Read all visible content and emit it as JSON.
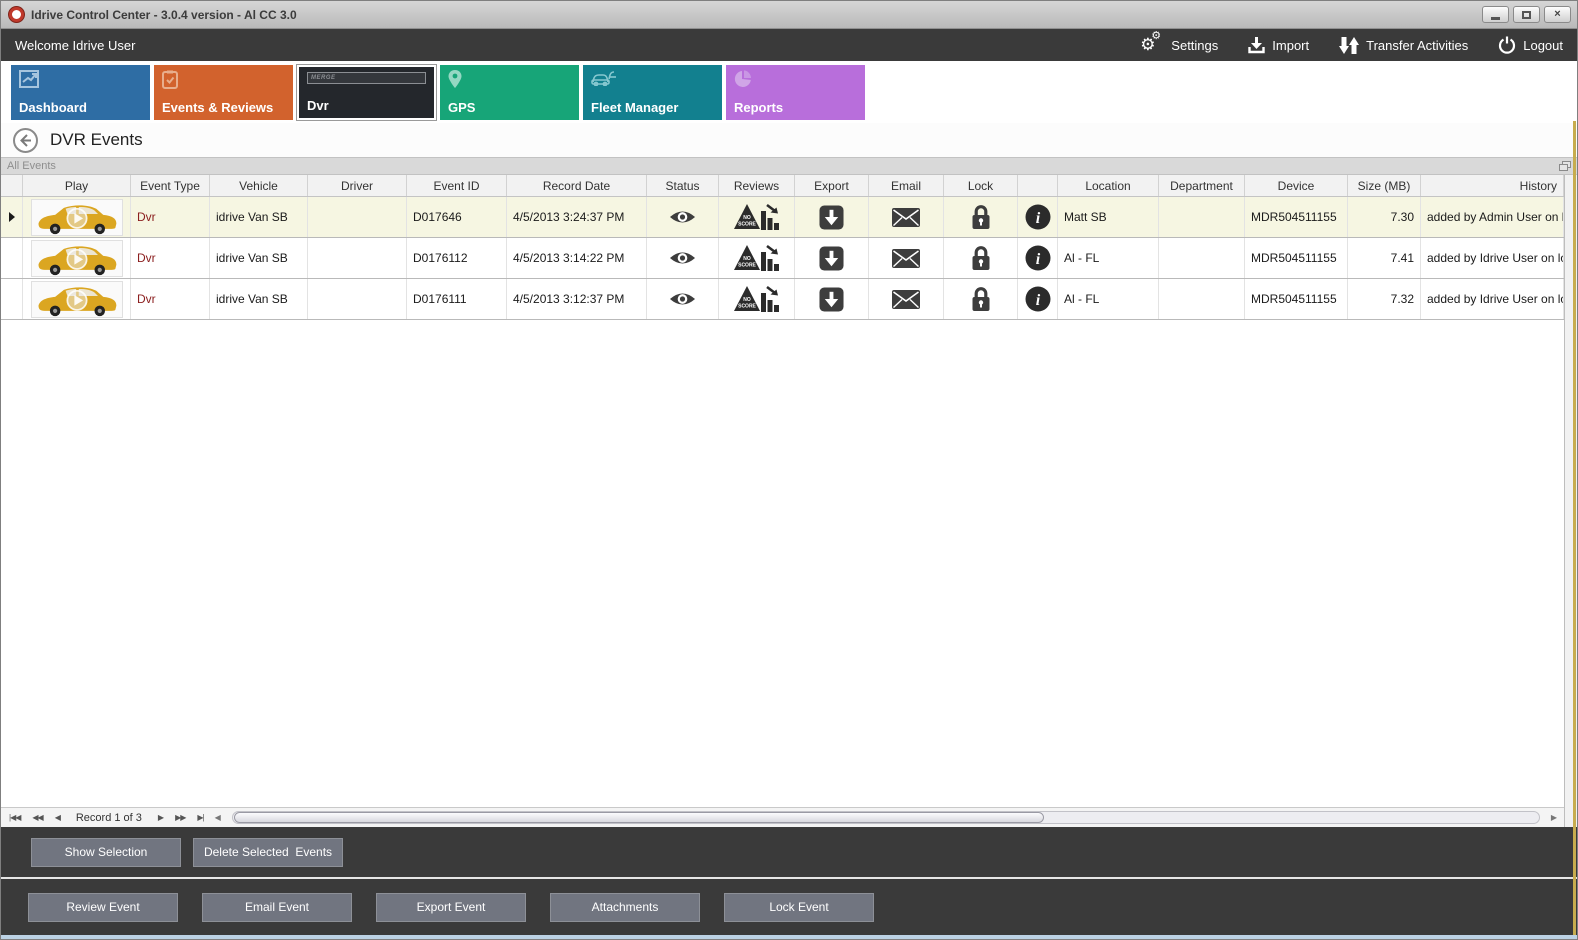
{
  "window": {
    "title": "Idrive Control Center - 3.0.4 version - Al CC 3.0"
  },
  "topbar": {
    "welcome": "Welcome Idrive User",
    "actions": [
      {
        "label": "Settings"
      },
      {
        "label": "Import"
      },
      {
        "label": "Transfer Activities"
      },
      {
        "label": "Logout"
      }
    ]
  },
  "tiles": [
    {
      "label": "Dashboard",
      "color": "#2e6da4"
    },
    {
      "label": "Events & Reviews",
      "color": "#d2622d"
    },
    {
      "label": "Dvr",
      "color": "#24272c",
      "selected": true,
      "icon_text": "MERGE"
    },
    {
      "label": "GPS",
      "color": "#17a578"
    },
    {
      "label": "Fleet Manager",
      "color": "#12808f"
    },
    {
      "label": "Reports",
      "color": "#b86edb"
    }
  ],
  "page": {
    "title": "DVR Events",
    "group_label": "All Events"
  },
  "grid": {
    "columns": [
      "Play",
      "Event Type",
      "Vehicle",
      "Driver",
      "Event ID",
      "Record Date",
      "Status",
      "Reviews",
      "Export",
      "Email",
      "Lock",
      "",
      "Location",
      "Department",
      "Device",
      "Size (MB)",
      "History"
    ],
    "rows": [
      {
        "selected": true,
        "event_type": "Dvr",
        "vehicle": "idrive Van SB",
        "driver": "",
        "event_id": "D017646",
        "record_date": "4/5/2013 3:24:37 PM",
        "location": "Matt SB",
        "department": "",
        "device": "MDR504511155",
        "size_mb": "7.30",
        "history": "added by Admin User on local"
      },
      {
        "selected": false,
        "event_type": "Dvr",
        "vehicle": "idrive Van SB",
        "driver": "",
        "event_id": "D0176112",
        "record_date": "4/5/2013 3:14:22 PM",
        "location": "Al - FL",
        "department": "",
        "device": "MDR504511155",
        "size_mb": "7.41",
        "history": "added by Idrive User on local"
      },
      {
        "selected": false,
        "event_type": "Dvr",
        "vehicle": "idrive Van SB",
        "driver": "",
        "event_id": "D0176111",
        "record_date": "4/5/2013 3:12:37 PM",
        "location": "Al - FL",
        "department": "",
        "device": "MDR504511155",
        "size_mb": "7.32",
        "history": "added by Idrive User on local"
      }
    ]
  },
  "icons": {
    "reviews_badge_line1": "NO",
    "reviews_badge_line2": "SCORE"
  },
  "pagination": {
    "label": "Record 1 of 3",
    "nav": [
      "|◀◀",
      "◀◀",
      "◀",
      "▶",
      "▶▶",
      "▶|"
    ],
    "scroll_left": "◀",
    "scroll_right": "▶"
  },
  "selection_actions": [
    {
      "label": "Show Selection"
    },
    {
      "label": "Delete Selected  Events"
    }
  ],
  "event_actions": [
    {
      "label": "Review Event"
    },
    {
      "label": "Email Event"
    },
    {
      "label": "Export Event"
    },
    {
      "label": "Attachments"
    },
    {
      "label": "Lock Event"
    }
  ]
}
